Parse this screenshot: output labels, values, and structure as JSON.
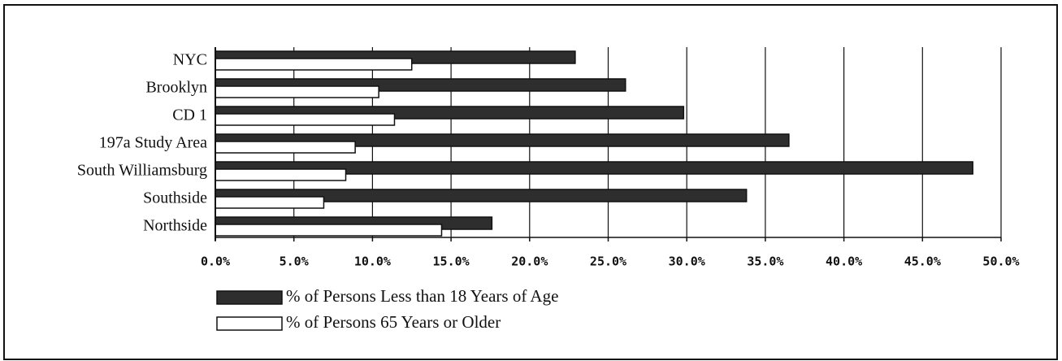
{
  "chart_data": {
    "type": "bar",
    "orientation": "horizontal",
    "categories": [
      "NYC",
      "Brooklyn",
      "CD 1",
      "197a Study Area",
      "South Williamsburg",
      "Southside",
      "Northside"
    ],
    "series": [
      {
        "name": "% of Persons Less than 18 Years of Age",
        "color": "#2e2e2e",
        "values": [
          22.9,
          26.1,
          29.8,
          36.5,
          48.2,
          33.8,
          17.6
        ]
      },
      {
        "name": "% of Persons 65 Years or Older",
        "color": "#ffffff",
        "values": [
          12.5,
          10.4,
          11.4,
          8.9,
          8.3,
          6.9,
          14.4
        ]
      }
    ],
    "xlim": [
      0,
      50
    ],
    "xticks": [
      {
        "value": 0,
        "label": "0.0%"
      },
      {
        "value": 5,
        "label": "5.0%"
      },
      {
        "value": 10,
        "label": "10.0%"
      },
      {
        "value": 15,
        "label": "15.0%"
      },
      {
        "value": 20,
        "label": "20.0%"
      },
      {
        "value": 25,
        "label": "25.0%"
      },
      {
        "value": 30,
        "label": "30.0%"
      },
      {
        "value": 35,
        "label": "35.0%"
      },
      {
        "value": 40,
        "label": "40.0%"
      },
      {
        "value": 45,
        "label": "45.0%"
      },
      {
        "value": 50,
        "label": "50.0%"
      }
    ],
    "grid": true,
    "legend": "bottom"
  }
}
